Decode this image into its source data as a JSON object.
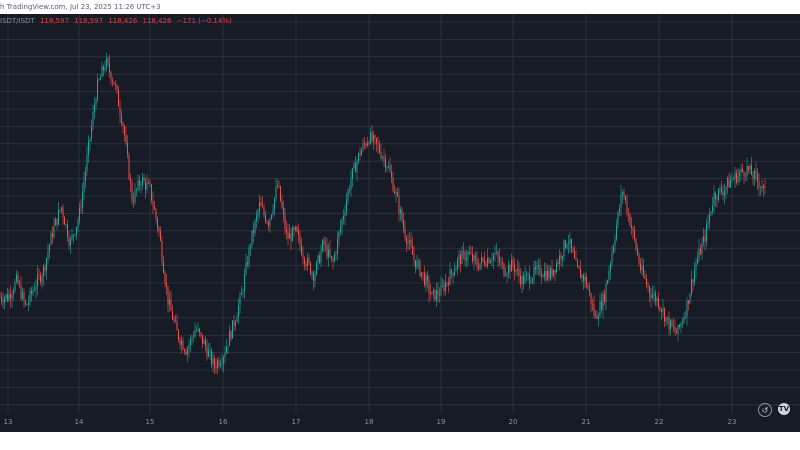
{
  "header": {
    "text": "h TradingView.com, Jul 23, 2025 11:26 UTC+3"
  },
  "legend": {
    "symbol": "ISDT/ISDT",
    "open": "118,597",
    "high": "118,597",
    "low": "118,426",
    "close": "118,426",
    "change": "−171 (−0.14%)"
  },
  "colors": {
    "background": "#171b26",
    "grid": "#3a3e49",
    "up": "#26a69a",
    "down": "#ef5350"
  },
  "controls": {
    "reset_icon": "reset-icon",
    "logo_icon": "tradingview-logo-icon"
  },
  "chart_data": {
    "type": "candlestick",
    "title": "",
    "xlabel": "",
    "ylabel": "",
    "x_ticks": [
      "13",
      "14",
      "15",
      "16",
      "17",
      "18",
      "19",
      "20",
      "21",
      "22",
      "23"
    ],
    "grid": true,
    "ylim": [
      115000,
      122500
    ],
    "series": [
      {
        "day": "13",
        "values": [
          117200,
          117500,
          117000,
          117400,
          117700,
          118400,
          118900,
          118200
        ]
      },
      {
        "day": "14",
        "values": [
          118700,
          119900,
          121100,
          121600,
          121200,
          120400,
          119000,
          119400
        ]
      },
      {
        "day": "15",
        "values": [
          119200,
          118400,
          117100,
          116500,
          116200,
          116600,
          116300,
          115900
        ]
      },
      {
        "day": "16",
        "values": [
          116100,
          116600,
          117200,
          118200,
          118900,
          118600,
          119300,
          118300
        ]
      },
      {
        "day": "17",
        "values": [
          118400,
          117900,
          117600,
          118200,
          117800,
          118600,
          119400,
          119900
        ]
      },
      {
        "day": "18",
        "values": [
          120200,
          120000,
          119700,
          119100,
          118400,
          117900,
          117600,
          117200
        ]
      },
      {
        "day": "19",
        "values": [
          117300,
          117600,
          117900,
          118000,
          117800,
          117900,
          118000,
          117700
        ]
      },
      {
        "day": "20",
        "values": [
          117800,
          117500,
          117600,
          117700,
          117600,
          117900,
          118300,
          117700
        ]
      },
      {
        "day": "21",
        "values": [
          117500,
          116800,
          117200,
          118200,
          119200,
          118500,
          117700,
          117300
        ]
      },
      {
        "day": "22",
        "values": [
          117100,
          116700,
          116500,
          117000,
          117800,
          118300,
          119100,
          119200
        ]
      },
      {
        "day": "23",
        "values": [
          119400,
          119600,
          119300,
          118700,
          118800
        ]
      }
    ]
  }
}
